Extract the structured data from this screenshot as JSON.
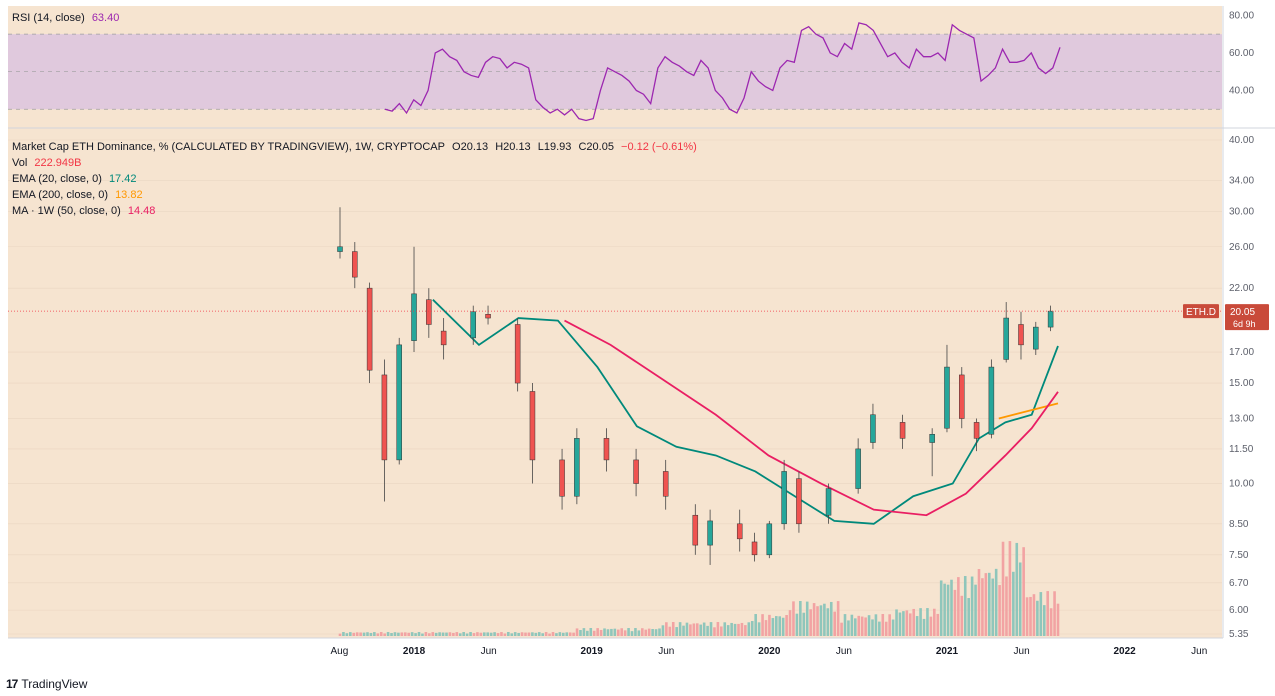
{
  "chart_data": {
    "type": "candlestick",
    "main": {
      "title": "Market Cap ETH Dominance, % (CALCULATED BY TRADINGVIEW), 1W, CRYPTOCAP",
      "ohlc_text": {
        "o": "O20.13",
        "h": "H20.13",
        "l": "L19.93",
        "c": "C20.05",
        "chg": "−0.12 (−0.61%)"
      },
      "y_ticks": [
        "40.00",
        "34.00",
        "30.00",
        "26.00",
        "22.00",
        "17.00",
        "15.00",
        "13.00",
        "11.50",
        "10.00",
        "8.50",
        "7.50",
        "6.70",
        "6.00",
        "5.35"
      ],
      "last_price_label": {
        "symbol": "ETH.D",
        "value": "20.05",
        "countdown": "6d 9h",
        "value_num": 20.05
      },
      "x_ticks": [
        "Aug",
        "2018",
        "Jun",
        "2019",
        "Jun",
        "2020",
        "Jun",
        "2021",
        "Jun",
        "2022",
        "Jun"
      ],
      "candles_approx": [
        {
          "t": "2017-08",
          "o": 25.5,
          "h": 30.5,
          "l": 24.8,
          "c": 26.0
        },
        {
          "t": "2017-09",
          "o": 25.5,
          "h": 26.5,
          "l": 22.0,
          "c": 23.0
        },
        {
          "t": "2017-10",
          "o": 22.0,
          "h": 22.5,
          "l": 15.0,
          "c": 15.8
        },
        {
          "t": "2017-11",
          "o": 15.5,
          "h": 16.5,
          "l": 9.3,
          "c": 11.0
        },
        {
          "t": "2017-12",
          "o": 11.0,
          "h": 18.0,
          "l": 10.8,
          "c": 17.5
        },
        {
          "t": "2018-01",
          "o": 17.8,
          "h": 26.0,
          "l": 17.0,
          "c": 21.5
        },
        {
          "t": "2018-02",
          "o": 21.0,
          "h": 22.0,
          "l": 18.0,
          "c": 19.0
        },
        {
          "t": "2018-03",
          "o": 18.5,
          "h": 19.5,
          "l": 16.5,
          "c": 17.5
        },
        {
          "t": "2018-05",
          "o": 18.0,
          "h": 20.5,
          "l": 17.5,
          "c": 20.0
        },
        {
          "t": "2018-06",
          "o": 19.8,
          "h": 20.5,
          "l": 19.0,
          "c": 19.5
        },
        {
          "t": "2018-08",
          "o": 19.0,
          "h": 19.5,
          "l": 14.5,
          "c": 15.0
        },
        {
          "t": "2018-09",
          "o": 14.5,
          "h": 15.0,
          "l": 10.0,
          "c": 11.0
        },
        {
          "t": "2018-11",
          "o": 11.0,
          "h": 11.5,
          "l": 9.0,
          "c": 9.5
        },
        {
          "t": "2018-12",
          "o": 9.5,
          "h": 12.5,
          "l": 9.2,
          "c": 12.0
        },
        {
          "t": "2019-02",
          "o": 12.0,
          "h": 12.5,
          "l": 10.5,
          "c": 11.0
        },
        {
          "t": "2019-04",
          "o": 11.0,
          "h": 11.5,
          "l": 9.5,
          "c": 10.0
        },
        {
          "t": "2019-06",
          "o": 10.5,
          "h": 11.0,
          "l": 9.0,
          "c": 9.5
        },
        {
          "t": "2019-08",
          "o": 8.8,
          "h": 9.2,
          "l": 7.5,
          "c": 7.8
        },
        {
          "t": "2019-09",
          "o": 7.8,
          "h": 9.0,
          "l": 7.2,
          "c": 8.6
        },
        {
          "t": "2019-11",
          "o": 8.5,
          "h": 9.0,
          "l": 7.6,
          "c": 8.0
        },
        {
          "t": "2019-12",
          "o": 7.9,
          "h": 8.2,
          "l": 7.3,
          "c": 7.5
        },
        {
          "t": "2020-01",
          "o": 7.5,
          "h": 8.6,
          "l": 7.4,
          "c": 8.5
        },
        {
          "t": "2020-02",
          "o": 8.5,
          "h": 11.0,
          "l": 8.3,
          "c": 10.5
        },
        {
          "t": "2020-03",
          "o": 10.2,
          "h": 10.5,
          "l": 8.2,
          "c": 8.5
        },
        {
          "t": "2020-05",
          "o": 8.8,
          "h": 10.0,
          "l": 8.5,
          "c": 9.8
        },
        {
          "t": "2020-07",
          "o": 9.8,
          "h": 12.0,
          "l": 9.6,
          "c": 11.5
        },
        {
          "t": "2020-08",
          "o": 11.8,
          "h": 13.8,
          "l": 11.5,
          "c": 13.2
        },
        {
          "t": "2020-10",
          "o": 12.8,
          "h": 13.2,
          "l": 11.5,
          "c": 12.0
        },
        {
          "t": "2020-12",
          "o": 11.8,
          "h": 12.5,
          "l": 10.3,
          "c": 12.2
        },
        {
          "t": "2021-01",
          "o": 12.5,
          "h": 17.5,
          "l": 12.3,
          "c": 16.0
        },
        {
          "t": "2021-02",
          "o": 15.5,
          "h": 16.0,
          "l": 12.5,
          "c": 13.0
        },
        {
          "t": "2021-03",
          "o": 12.8,
          "h": 13.0,
          "l": 11.4,
          "c": 12.0
        },
        {
          "t": "2021-04",
          "o": 12.2,
          "h": 16.5,
          "l": 12.0,
          "c": 16.0
        },
        {
          "t": "2021-05",
          "o": 16.5,
          "h": 20.8,
          "l": 16.3,
          "c": 19.5
        },
        {
          "t": "2021-06",
          "o": 19.0,
          "h": 20.0,
          "l": 16.5,
          "c": 17.5
        },
        {
          "t": "2021-07",
          "o": 17.2,
          "h": 19.2,
          "l": 16.8,
          "c": 18.8
        },
        {
          "t": "2021-08",
          "o": 18.8,
          "h": 20.5,
          "l": 18.5,
          "c": 20.05
        }
      ],
      "series": [
        {
          "name": "Vol",
          "value": "222.949B",
          "color": "#f23645"
        },
        {
          "name": "EMA (20, close, 0)",
          "value": "17.42",
          "color": "#00897b",
          "points": [
            [
              0.05,
              21
            ],
            [
              0.12,
              17.5
            ],
            [
              0.18,
              19.5
            ],
            [
              0.24,
              19.3
            ],
            [
              0.3,
              16
            ],
            [
              0.36,
              12.6
            ],
            [
              0.42,
              11.6
            ],
            [
              0.48,
              11.2
            ],
            [
              0.54,
              10.5
            ],
            [
              0.6,
              9.5
            ],
            [
              0.66,
              8.6
            ],
            [
              0.72,
              8.5
            ],
            [
              0.78,
              9.5
            ],
            [
              0.84,
              10.0
            ],
            [
              0.88,
              12.0
            ],
            [
              0.92,
              12.8
            ],
            [
              0.96,
              13.2
            ],
            [
              1.0,
              17.42
            ]
          ]
        },
        {
          "name": "EMA (200, close, 0)",
          "value": "13.82",
          "color": "#ff9800",
          "points": [
            [
              0.91,
              13.0
            ],
            [
              1.0,
              13.82
            ]
          ]
        },
        {
          "name": "MA · 1W (50, close, 0)",
          "value": "14.48",
          "color": "#e91e63",
          "points": [
            [
              0.25,
              19.3
            ],
            [
              0.32,
              17.5
            ],
            [
              0.4,
              15.2
            ],
            [
              0.48,
              13.2
            ],
            [
              0.56,
              11.2
            ],
            [
              0.64,
              10.0
            ],
            [
              0.72,
              9.0
            ],
            [
              0.8,
              8.8
            ],
            [
              0.86,
              9.6
            ],
            [
              0.92,
              11.2
            ],
            [
              0.96,
              12.5
            ],
            [
              1.0,
              14.48
            ]
          ]
        }
      ]
    },
    "rsi": {
      "title": "RSI (14, close)",
      "value": "63.40",
      "color": "#9c27b0",
      "y_ticks": [
        "80.00",
        "60.00",
        "40.00"
      ],
      "band": [
        30,
        70
      ],
      "values": [
        30,
        29,
        33,
        28,
        35,
        32,
        40,
        60,
        62,
        58,
        56,
        50,
        48,
        47,
        55,
        58,
        57,
        52,
        55,
        54,
        52,
        35,
        31,
        28,
        30,
        27,
        30,
        25,
        24,
        25,
        40,
        52,
        50,
        48,
        45,
        40,
        38,
        33,
        52,
        58,
        55,
        53,
        50,
        48,
        56,
        52,
        40,
        36,
        30,
        28,
        36,
        50,
        45,
        42,
        40,
        52,
        56,
        55,
        72,
        74,
        70,
        68,
        60,
        58,
        65,
        62,
        76,
        75,
        72,
        65,
        58,
        60,
        55,
        52,
        62,
        58,
        58,
        60,
        56,
        75,
        72,
        70,
        68,
        45,
        48,
        52,
        62,
        55,
        55,
        56,
        60,
        52,
        49,
        52,
        63
      ]
    }
  },
  "branding": {
    "name": "TradingView"
  }
}
